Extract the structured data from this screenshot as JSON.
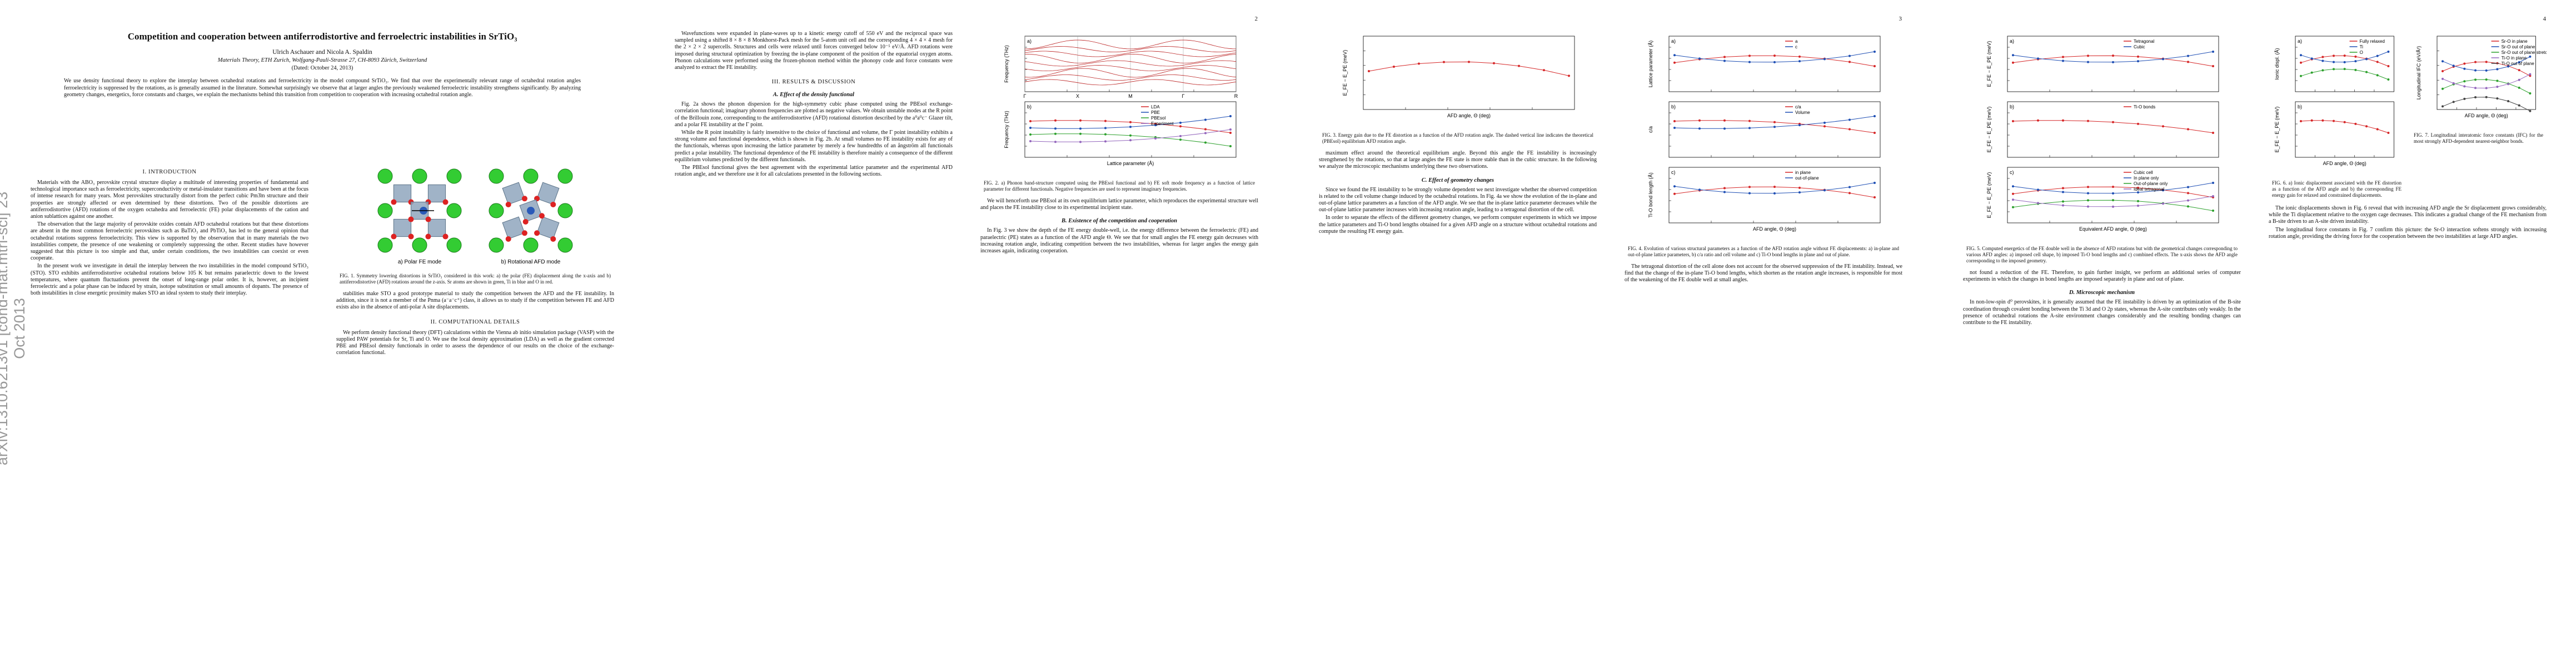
{
  "sidebar": "arXiv:1310.6213v1 [cond-mat.mtrl-sci] 23 Oct 2013",
  "pages": [
    {
      "front": {
        "title": "Competition and cooperation between antiferrodistortive and ferroelectric instabilities in SrTiO₃",
        "authors": "Ulrich Aschauer and Nicola A. Spaldin",
        "affiliation": "Materials Theory, ETH Zurich, Wolfgang-Pauli-Strasse 27, CH-8093 Zürich, Switzerland",
        "date": "(Dated: October 24, 2013)",
        "abstract": "We use density functional theory to explore the interplay between octahedral rotations and ferroelectricity in the model compound SrTiO₃. We find that over the experimentally relevant range of octahedral rotation angles ferroelectricity is suppressed by the rotations, as is generally assumed in the literature. Somewhat surprisingly we observe that at larger angles the previously weakened ferroelectric instability strengthens significantly. By analyzing geometry changes, energetics, force constants and charges, we explain the mechanisms behind this transition from competition to cooperation with increasing octahedral rotation angle."
      },
      "columns": [
        {
          "blocks": [
            {
              "type": "heading",
              "text": "I. INTRODUCTION"
            },
            {
              "type": "text",
              "text": "Materials with the ABO₃ perovskite crystal structure display a multitude of interesting properties of fundamental and technological importance such as ferroelectricity, superconductivity or metal-insulator transitions and have been at the focus of intense research for many years. Most perovskites structurally distort from the perfect cubic Pm3̄m structure and their properties are strongly affected or even determined by these distortions. Two of the possible distortions are antiferrodistortive (AFD) rotations of the oxygen octahedra and ferroelectric (FE) polar displacements of the cation and anion sublattices against one another."
            },
            {
              "type": "text",
              "text": "The observation that the large majority of perovskite oxides contain AFD octahedral rotations but that these distortions are absent in the most common ferroelectric perovskites such as BaTiO₃ and PbTiO₃ has led to the general opinion that octahedral rotations suppress ferroelectricity. This view is supported by the observation that in many materials the two instabilities compete, the presence of one weakening or completely suppressing the other. Recent studies have however suggested that this picture is too simple and that, under certain conditions, the two instabilities can coexist or even cooperate."
            },
            {
              "type": "text",
              "text": "In the present work we investigate in detail the interplay between the two instabilities in the model compound SrTiO₃ (STO). STO exhibits antiferrodistortive octahedral rotations below 105 K but remains paraelectric down to the lowest temperatures, where quantum fluctuations prevent the onset of long-range polar order. It is, however, an incipient ferroelectric and a polar phase can be induced by strain, isotope substitution or small amounts of dopants. The presence of both instabilities in close energetic proximity makes STO an ideal system to study their interplay."
            }
          ]
        },
        {
          "blocks": [
            {
              "type": "figure",
              "kind": "crystal",
              "panels": [
                {
                  "label": "a) Polar FE mode"
                },
                {
                  "label": "b) Rotational AFD mode"
                }
              ],
              "caption": "FIG. 1. Symmetry lowering distortions in SrTiO₃ considered in this work: a) the polar (FE) displacement along the x-axis and b) antiferrodistortive (AFD) rotations around the z-axis. Sr atoms are shown in green, Ti in blue and O in red."
            },
            {
              "type": "text",
              "text": "stabilities make STO a good prototype material to study the competition between the AFD and the FE instability. In addition, since it is not a member of the Pnma (a⁻a⁻c⁺) class, it allows us to study if the competition between FE and AFD exists also in the absence of anti-polar A site displacements."
            },
            {
              "type": "heading",
              "text": "II. COMPUTATIONAL DETAILS"
            },
            {
              "type": "text",
              "text": "We perform density functional theory (DFT) calculations within the Vienna ab initio simulation package (VASP) with the supplied PAW potentials for Sr, Ti and O. We use the local density approximation (LDA) as well as the gradient corrected PBE and PBEsol density functionals in order to assess the dependence of our results on the choice of the exchange-correlation functional."
            }
          ]
        }
      ]
    },
    {
      "number": "2",
      "columns": [
        {
          "blocks": [
            {
              "type": "text",
              "text": "Wavefunctions were expanded in plane-waves up to a kinetic energy cutoff of 550 eV and the reciprocal space was sampled using a shifted 8 × 8 × 8 Monkhorst-Pack mesh for the 5-atom unit cell and the corresponding 4 × 4 × 4 mesh for the 2 × 2 × 2 supercells. Structures and cells were relaxed until forces converged below 10⁻⁵ eV/Å. AFD rotations were imposed during structural optimization by freezing the in-plane component of the position of the equatorial oxygen atoms. Phonon calculations were performed using the frozen-phonon method within the phonopy code and force constants were analyzed to extract the FE instability."
            },
            {
              "type": "heading",
              "text": "III. RESULTS & DISCUSSION"
            },
            {
              "type": "subheading",
              "text": "A. Effect of the density functional"
            },
            {
              "type": "text",
              "text": "Fig. 2a shows the phonon dispersion for the high-symmetry cubic phase computed using the PBEsol exchange-correlation functional; imaginary phonon frequencies are plotted as negative values. We obtain unstable modes at the R point of the Brillouin zone, corresponding to the antiferrodistortive (AFD) rotational distortion described by the a⁰a⁰c⁻ Glazer tilt, and a polar FE instability at the Γ point."
            },
            {
              "type": "text",
              "text": "While the R point instability is fairly insensitive to the choice of functional and volume, the Γ point instability exhibits a strong volume and functional dependence, which is shown in Fig. 2b. At small volumes no FE instability exists for any of the functionals, whereas upon increasing the lattice parameter by merely a few hundredths of an ångström all functionals predict a polar instability. The functional dependence of the FE instability is therefore mainly a consequence of the different equilibrium volumes predicted by the different functionals."
            },
            {
              "type": "text",
              "text": "The PBEsol functional gives the best agreement with the experimental lattice parameter and the experimental AFD rotation angle, and we therefore use it for all calculations presented in the following sections."
            }
          ]
        },
        {
          "blocks": [
            {
              "type": "figure",
              "kind": "plot",
              "panels": [
                {
                  "label": "a)",
                  "ylabel": "Frequency (THz)",
                  "kpoints": [
                    "Γ",
                    "X",
                    "M",
                    "Γ",
                    "R"
                  ]
                },
                {
                  "label": "b)",
                  "ylabel": "Frequency (THz)",
                  "xlabel": "Lattice parameter (Å)",
                  "legend": [
                    "LDA",
                    "PBE",
                    "PBEsol",
                    "Experiment"
                  ]
                }
              ],
              "caption": "FIG. 2. a) Phonon band-structure computed using the PBEsol functional and b) FE soft mode frequency as a function of lattice parameter for different functionals. Negative frequencies are used to represent imaginary frequencies."
            },
            {
              "type": "text",
              "text": "We will henceforth use PBEsol at its own equilibrium lattice parameter, which reproduces the experimental structure well and places the FE instability close to its experimental incipient state."
            },
            {
              "type": "subheading",
              "text": "B. Existence of the competition and cooperation"
            },
            {
              "type": "text",
              "text": "In Fig. 3 we show the depth of the FE energy double-well, i.e. the energy difference between the ferroelectric (FE) and paraelectric (PE) states as a function of the AFD angle Θ. We see that for small angles the FE energy gain decreases with increasing rotation angle, indicating competition between the two instabilities, whereas for larger angles the energy gain increases again, indicating cooperation."
            }
          ]
        }
      ]
    },
    {
      "number": "3",
      "columns": [
        {
          "blocks": [
            {
              "type": "figure",
              "kind": "plot",
              "panels": [
                {
                  "ylabel": "E_FE − E_PE (meV)",
                  "xlabel": "AFD angle, Θ (deg)"
                }
              ],
              "caption": "FIG. 3. Energy gain due to the FE distortion as a function of the AFD rotation angle. The dashed vertical line indicates the theoretical (PBEsol) equilibrium AFD rotation angle."
            },
            {
              "type": "text",
              "text": "maximum effect around the theoretical equilibrium angle. Beyond this angle the FE instability is increasingly strengthened by the rotations, so that at large angles the FE state is more stable than in the cubic structure. In the following we analyze the microscopic mechanisms underlying these two observations."
            },
            {
              "type": "subheading",
              "text": "C. Effect of geometry changes"
            },
            {
              "type": "text",
              "text": "Since we found the FE instability to be strongly volume dependent we next investigate whether the observed competition is related to the cell volume change induced by the octahedral rotations. In Fig. 4a we show the evolution of the in-plane and out-of-plane lattice parameters as a function of the AFD angle. We see that the in-plane lattice parameter decreases while the out-of-plane lattice parameter increases with increasing rotation angle, leading to a tetragonal distortion of the cell."
            },
            {
              "type": "text",
              "text": "In order to separate the effects of the different geometry changes, we perform computer experiments in which we impose the lattice parameters and Ti-O bond lengths obtained for a given AFD angle on a structure without octahedral rotations and compute the resulting FE energy gain."
            }
          ]
        },
        {
          "blocks": [
            {
              "type": "figure",
              "kind": "plot",
              "panels": [
                {
                  "label": "a)",
                  "ylabel": "Lattice parameter (Å)",
                  "legend": [
                    "a",
                    "c"
                  ]
                },
                {
                  "label": "b)",
                  "ylabel": "c/a",
                  "legend": [
                    "c/a",
                    "Volume"
                  ]
                },
                {
                  "label": "c)",
                  "ylabel": "Ti-O bond length (Å)",
                  "xlabel": "AFD angle, Θ (deg)",
                  "legend": [
                    "in plane",
                    "out-of-plane"
                  ]
                }
              ],
              "caption": "FIG. 4. Evolution of various structural parameters as a function of the AFD rotation angle without FE displacements: a) in-plane and out-of-plane lattice parameters, b) c/a ratio and cell volume and c) Ti-O bond lengths in plane and out of plane."
            },
            {
              "type": "text",
              "text": "The tetragonal distortion of the cell alone does not account for the observed suppression of the FE instability. Instead, we find that the change of the in-plane Ti-O bond lengths, which shorten as the rotation angle increases, is responsible for most of the weakening of the FE double well at small angles."
            }
          ]
        }
      ]
    },
    {
      "number": "4",
      "columns": [
        {
          "blocks": [
            {
              "type": "figure",
              "kind": "plot",
              "panels": [
                {
                  "label": "a)",
                  "ylabel": "E_FE − E_PE (meV)",
                  "legend": [
                    "Tetragonal",
                    "Cubic"
                  ]
                },
                {
                  "label": "b)",
                  "ylabel": "E_FE − E_PE (meV)",
                  "legend": [
                    "Ti-O bonds"
                  ]
                },
                {
                  "label": "c)",
                  "ylabel": "E_FE − E_PE (meV)",
                  "xlabel": "Equivalent AFD angle, Θ (deg)",
                  "legend": [
                    "Cubic cell",
                    "In plane only",
                    "Out-of-plane only",
                    "Ideal tetragonal"
                  ]
                }
              ],
              "caption": "FIG. 5. Computed energetics of the FE double well in the absence of AFD rotations but with the geometrical changes corresponding to various AFD angles: a) imposed cell shape, b) imposed Ti-O bond lengths and c) combined effects. The x-axis shows the AFD angle corresponding to the imposed geometry."
            },
            {
              "type": "text",
              "text": "not found a reduction of the FE. Therefore, to gain further insight, we perform an additional series of computer experiments in which the changes in bond lengths are imposed separately in plane and out of plane."
            },
            {
              "type": "subheading",
              "text": "D. Microscopic mechanism"
            },
            {
              "type": "text",
              "text": "In non-low-spin d⁰ perovskites, it is generally assumed that the FE instability is driven by an optimization of the B-site coordination through covalent bonding between the Ti 3d and O 2p states, whereas the A-site contributes only weakly. In the presence of octahedral rotations the A-site environment changes considerably and the resulting bonding changes can contribute to the FE instability."
            }
          ]
        },
        {
          "blocks": [
            {
              "type": "figrow",
              "figures": [
                {
                  "kind": "plot",
                  "panels": [
                    {
                      "label": "a)",
                      "ylabel": "Ionic displ. (Å)",
                      "legend": [
                        "Fully relaxed",
                        "Ti",
                        "O"
                      ]
                    },
                    {
                      "label": "b)",
                      "ylabel": "E_FE − E_PE (meV)",
                      "xlabel": "AFD angle, Θ (deg)"
                    }
                  ],
                  "caption": "FIG. 6. a) Ionic displacement associated with the FE distortion as a function of the AFD angle and b) the corresponding FE energy gain for relaxed and constrained displacements."
                },
                {
                  "kind": "plot",
                  "panels": [
                    {
                      "ylabel": "Longitudinal IFC (eV/Å²)",
                      "xlabel": "AFD angle, Θ (deg)",
                      "legend": [
                        "Sr-O in plane",
                        "Sr-O out of plane",
                        "Sr-O out of plane stretched",
                        "Ti-O in plane",
                        "Ti-O out of plane"
                      ]
                    }
                  ],
                  "caption": "FIG. 7. Longitudinal interatomic force constants (IFC) for the most strongly AFD-dependent nearest-neighbor bonds."
                }
              ]
            },
            {
              "type": "text",
              "text": "The ionic displacements shown in Fig. 6 reveal that with increasing AFD angle the Sr displacement grows considerably, while the Ti displacement relative to the oxygen cage decreases. This indicates a gradual change of the FE mechanism from a B-site driven to an A-site driven instability."
            },
            {
              "type": "text",
              "text": "The longitudinal force constants in Fig. 7 confirm this picture: the Sr-O interaction softens strongly with increasing rotation angle, providing the driving force for the cooperation between the two instabilities at large AFD angles."
            }
          ]
        }
      ]
    }
  ]
}
